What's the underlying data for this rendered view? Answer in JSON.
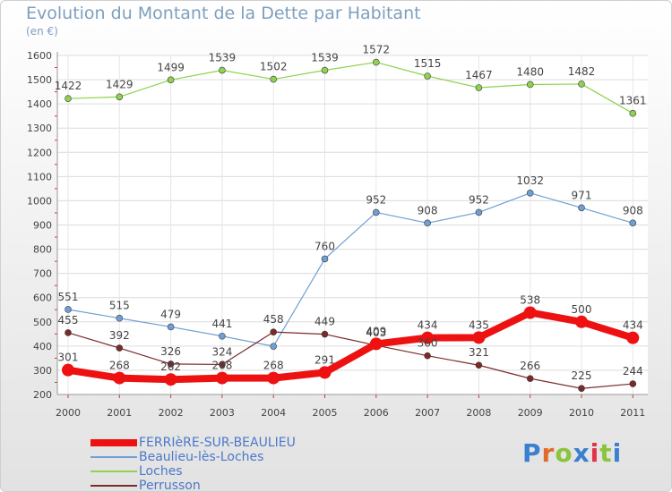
{
  "title": "Evolution du Montant de la Dette par Habitant",
  "subtitle": "(en €)",
  "logo": {
    "text": "Proxiti",
    "colors": [
      "#3a7fd0",
      "#e06b2a",
      "#8bc43d",
      "#3a7fd0",
      "#e0324a",
      "#8bc43d",
      "#3a7fd0"
    ]
  },
  "chart_data": {
    "type": "line",
    "categories": [
      "2000",
      "2001",
      "2002",
      "2003",
      "2004",
      "2005",
      "2006",
      "2007",
      "2008",
      "2009",
      "2010",
      "2011"
    ],
    "ylim": [
      200,
      1600
    ],
    "yticks": [
      200,
      300,
      400,
      500,
      600,
      700,
      800,
      900,
      1000,
      1100,
      1200,
      1300,
      1400,
      1500,
      1600
    ],
    "grid": true,
    "legend_position": "bottom-left",
    "series": [
      {
        "name": "FERRIèRE-SUR-BEAULIEU",
        "color": "#ee1111",
        "width": 8,
        "radius": 7,
        "values": [
          301,
          268,
          262,
          268,
          268,
          291,
          409,
          434,
          435,
          538,
          500,
          434
        ],
        "labels": [
          "301",
          "268",
          "262",
          "268",
          "268",
          "291",
          "409",
          "434",
          "435",
          "538",
          "500",
          "434"
        ]
      },
      {
        "name": "Beaulieu-lès-Loches",
        "color": "#6f9fd4",
        "width": 1.2,
        "radius": 3.5,
        "values": [
          551,
          515,
          479,
          441,
          399,
          760,
          952,
          908,
          952,
          1032,
          971,
          908
        ],
        "labels": [
          "551",
          "515",
          "479",
          "441",
          "",
          "760",
          "952",
          "908",
          "952",
          "1032",
          "971",
          "908"
        ]
      },
      {
        "name": "Loches",
        "color": "#8ed24f",
        "width": 1.2,
        "radius": 3.5,
        "values": [
          1422,
          1429,
          1499,
          1539,
          1502,
          1539,
          1572,
          1515,
          1467,
          1480,
          1482,
          1361
        ],
        "labels": [
          "1422",
          "1429",
          "1499",
          "1539",
          "1502",
          "1539",
          "1572",
          "1515",
          "1467",
          "1480",
          "1482",
          "1361"
        ]
      },
      {
        "name": "Perrusson",
        "color": "#7b2a2a",
        "width": 1.2,
        "radius": 3.5,
        "values": [
          455,
          392,
          326,
          324,
          458,
          449,
          403,
          360,
          321,
          266,
          225,
          244
        ],
        "labels": [
          "455",
          "392",
          "326",
          "324",
          "458",
          "449",
          "403",
          "360",
          "321",
          "266",
          "225",
          "244"
        ]
      }
    ]
  }
}
